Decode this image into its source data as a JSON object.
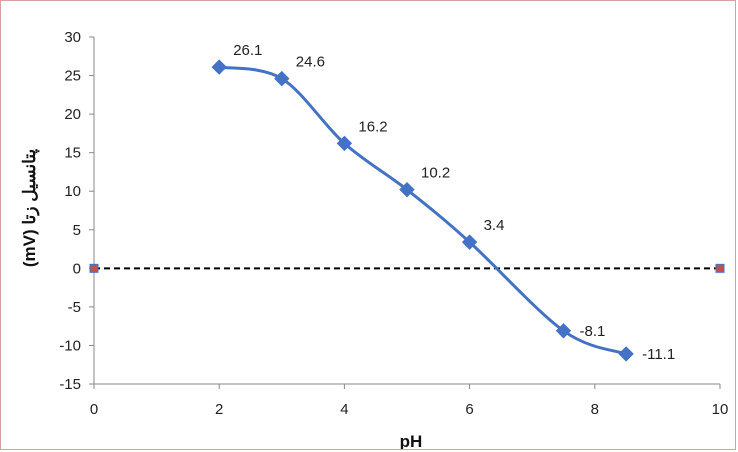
{
  "chart_data": {
    "type": "scatter",
    "title": "",
    "xlabel": "pH",
    "ylabel": "(mV) پتانسیل زتا",
    "xlim": [
      0,
      10
    ],
    "ylim": [
      -15,
      30
    ],
    "x_ticks": [
      0,
      2,
      4,
      6,
      8,
      10
    ],
    "y_ticks": [
      -15,
      -10,
      -5,
      0,
      5,
      10,
      15,
      20,
      25,
      30
    ],
    "x_tick_labels": [
      "0",
      "2",
      "4",
      "6",
      "8",
      "10"
    ],
    "y_tick_labels": [
      "-15",
      "-10",
      "-5",
      "0",
      "5",
      "10",
      "15",
      "20",
      "25",
      "30"
    ],
    "grid": false,
    "legend": "none",
    "series": [
      {
        "style": "smooth-line-with-diamond-markers",
        "color": "#4472C4",
        "x": [
          2,
          3,
          4,
          5,
          6,
          7.5,
          8.5
        ],
        "y": [
          26.1,
          24.6,
          16.2,
          10.2,
          3.4,
          -8.1,
          -11.1
        ],
        "data_labels": [
          "26.1",
          "24.6",
          "16.2",
          "10.2",
          "3.4",
          "-8.1",
          "-11.1"
        ]
      },
      {
        "style": "dashed-line-with-square-markers",
        "color": "#000000",
        "marker_color": "#C0504D",
        "x": [
          0,
          10
        ],
        "y": [
          0,
          0
        ]
      }
    ]
  }
}
